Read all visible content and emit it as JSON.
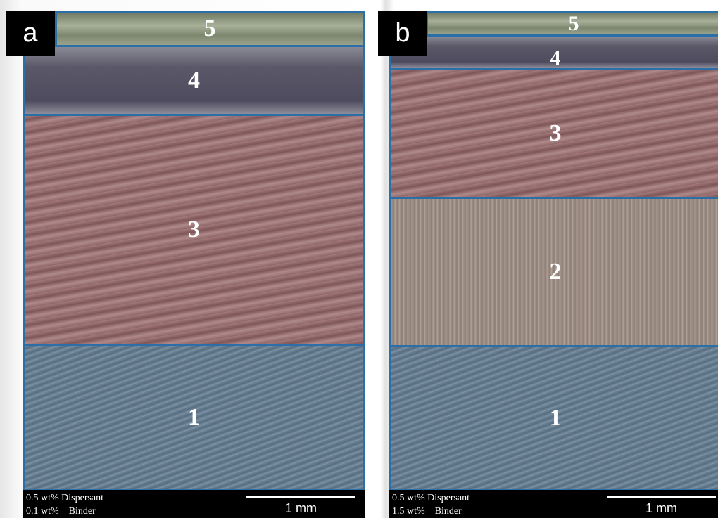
{
  "panels": [
    {
      "label": "a",
      "regions": [
        {
          "label": "5"
        },
        {
          "label": "4"
        },
        {
          "label": "3"
        },
        {
          "label": "1"
        }
      ],
      "caption": [
        "0.5 wt% Dispersant",
        "0.1 wt%    Binder"
      ],
      "scale": "1 mm"
    },
    {
      "label": "b",
      "regions": [
        {
          "label": "5"
        },
        {
          "label": "4"
        },
        {
          "label": "3"
        },
        {
          "label": "2"
        },
        {
          "label": "1"
        }
      ],
      "caption": [
        "0.5 wt% Dispersant",
        "1.5 wt%    Binder"
      ],
      "scale": "1 mm"
    }
  ]
}
